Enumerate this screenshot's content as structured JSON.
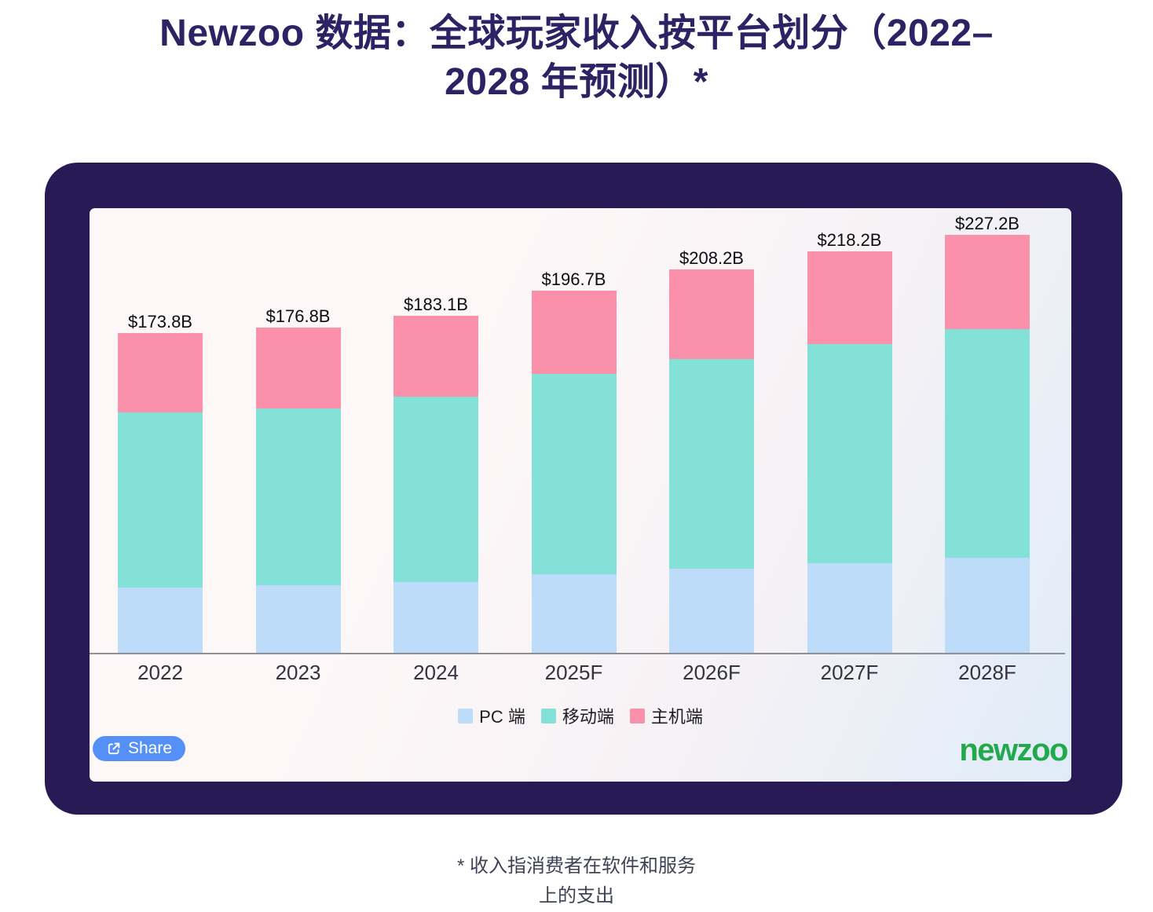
{
  "title": {
    "line1": "Newzoo 数据：全球玩家收入按平台划分（2022–",
    "line2": "2028 年预测）*"
  },
  "footnote": {
    "line1": "* 收入指消费者在软件和服务",
    "line2": "上的支出"
  },
  "share_button": {
    "label": "Share"
  },
  "brand": {
    "logo_text": "newzoo",
    "color": "#23a94c"
  },
  "chart_data": {
    "type": "bar",
    "stacked": true,
    "title": "Newzoo 数据：全球玩家收入按平台划分（2022–2028 年预测）*",
    "unit": "USD billions",
    "categories": [
      "2022",
      "2023",
      "2024",
      "2025F",
      "2026F",
      "2027F",
      "2028F"
    ],
    "series": [
      {
        "name": "PC 端",
        "color": "#bddcfa",
        "values": [
          35.4,
          36.7,
          38.4,
          42.7,
          45.7,
          48.5,
          51.7
        ]
      },
      {
        "name": "移动端",
        "color": "#83e1d8",
        "values": [
          95.2,
          96.1,
          100.7,
          108.9,
          113.8,
          119.4,
          124.3
        ]
      },
      {
        "name": "主机端",
        "color": "#fb90aa",
        "values": [
          43.1,
          44.0,
          44.0,
          45.1,
          48.7,
          50.3,
          51.2
        ]
      }
    ],
    "totals": [
      "$173.8B",
      "$176.8B",
      "$183.1B",
      "$196.7B",
      "$208.2B",
      "$218.2B",
      "$227.2B"
    ],
    "legend_position": "bottom",
    "grid": false
  }
}
